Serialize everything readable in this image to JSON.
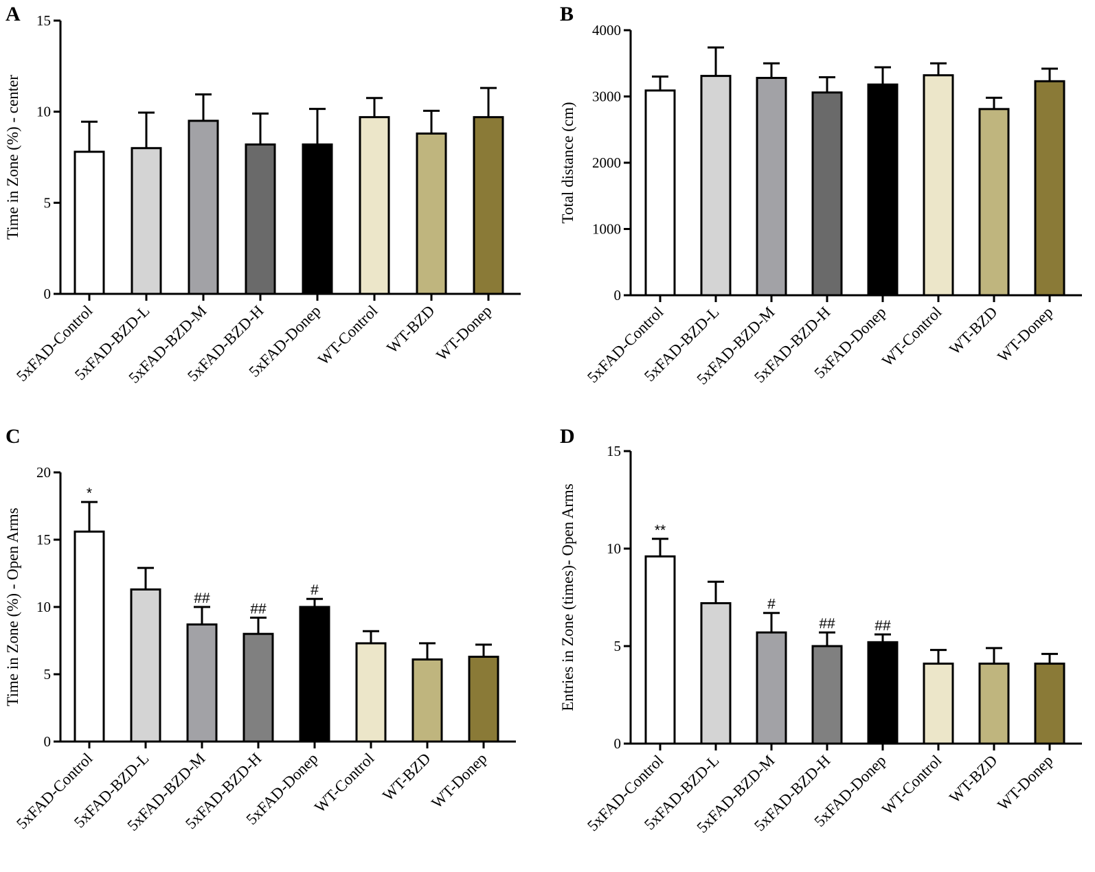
{
  "chart_data": [
    {
      "type": "bar",
      "panel": "A",
      "categories": [
        "5xFAD-Control",
        "5xFAD-BZD-L",
        "5xFAD-BZD-M",
        "5xFAD-BZD-H",
        "5xFAD-Donep",
        "WT-Control",
        "WT-BZD",
        "WT-Donep"
      ],
      "values": [
        7.8,
        8.0,
        9.5,
        8.2,
        8.2,
        9.7,
        8.8,
        9.7
      ],
      "errors": [
        1.65,
        1.95,
        1.45,
        1.7,
        1.95,
        1.05,
        1.25,
        1.6
      ],
      "annotations": [
        "",
        "",
        "",
        "",
        "",
        "",
        "",
        ""
      ],
      "ylabel": "Time in Zone (%) - center",
      "xlabel": "",
      "ylim": [
        0,
        15
      ],
      "yticks": [
        0,
        5,
        10,
        15
      ]
    },
    {
      "type": "bar",
      "panel": "B",
      "categories": [
        "5xFAD-Control",
        "5xFAD-BZD-L",
        "5xFAD-BZD-M",
        "5xFAD-BZD-H",
        "5xFAD-Donep",
        "WT-Control",
        "WT-BZD",
        "WT-Donep"
      ],
      "values": [
        3090,
        3310,
        3280,
        3060,
        3180,
        3320,
        2810,
        3230
      ],
      "errors": [
        210,
        430,
        220,
        230,
        260,
        180,
        170,
        190
      ],
      "annotations": [
        "",
        "",
        "",
        "",
        "",
        "",
        "",
        ""
      ],
      "ylabel": "Total distance (cm)",
      "xlabel": "",
      "ylim": [
        0,
        4000
      ],
      "yticks": [
        0,
        1000,
        2000,
        3000,
        4000
      ]
    },
    {
      "type": "bar",
      "panel": "C",
      "categories": [
        "5xFAD-Control",
        "5xFAD-BZD-L",
        "5xFAD-BZD-M",
        "5xFAD-BZD-H",
        "5xFAD-Donep",
        "WT-Control",
        "WT-BZD",
        "WT-Donep"
      ],
      "values": [
        15.6,
        11.3,
        8.7,
        8.0,
        10.0,
        7.3,
        6.1,
        6.3
      ],
      "errors": [
        2.2,
        1.6,
        1.3,
        1.2,
        0.6,
        0.9,
        1.2,
        0.9
      ],
      "annotations": [
        "*",
        "",
        "##",
        "##",
        "#",
        "",
        "",
        ""
      ],
      "ylabel": "Time in Zone (%) - Open Arms",
      "xlabel": "",
      "ylim": [
        0,
        20
      ],
      "yticks": [
        0,
        5,
        10,
        15,
        20
      ]
    },
    {
      "type": "bar",
      "panel": "D",
      "categories": [
        "5xFAD-Control",
        "5xFAD-BZD-L",
        "5xFAD-BZD-M",
        "5xFAD-BZD-H",
        "5xFAD-Donep",
        "WT-Control",
        "WT-BZD",
        "WT-Donep"
      ],
      "values": [
        9.6,
        7.2,
        5.7,
        5.0,
        5.2,
        4.1,
        4.1,
        4.1
      ],
      "errors": [
        0.9,
        1.1,
        1.0,
        0.7,
        0.4,
        0.7,
        0.8,
        0.5
      ],
      "annotations": [
        "**",
        "",
        "#",
        "##",
        "##",
        "",
        "",
        ""
      ],
      "ylabel": "Entries in Zone (times)- Open Arms",
      "xlabel": "",
      "ylim": [
        0,
        15
      ],
      "yticks": [
        0,
        5,
        10,
        15
      ]
    }
  ],
  "colors": {
    "bar_fills": [
      "#ffffff",
      "#d4d4d4",
      "#a2a2a6",
      "#6a6a6a",
      "#000000",
      "#ece6c9",
      "#bfb57e",
      "#8a7a37"
    ],
    "bar_fills_panel_c_d_bzd_h": "#808080",
    "axis": "#000000"
  }
}
